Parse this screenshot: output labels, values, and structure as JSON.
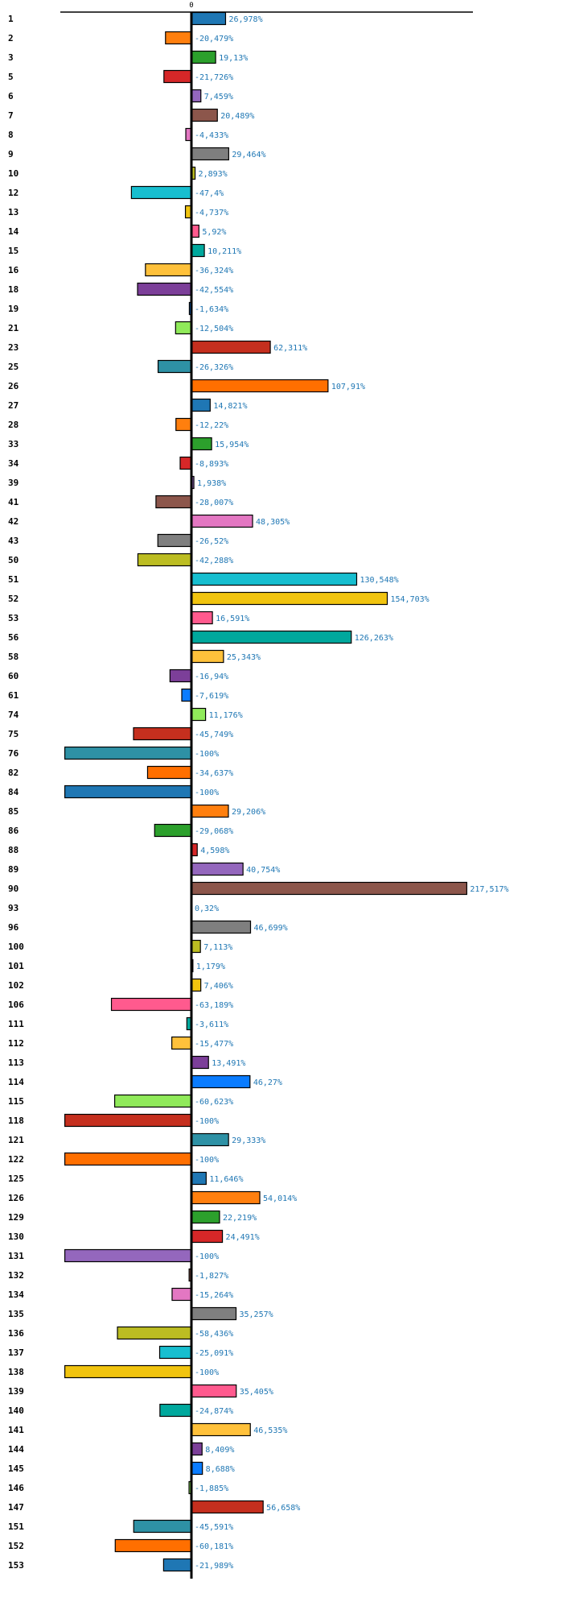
{
  "chart_data": {
    "type": "bar",
    "orientation": "horizontal",
    "title": "",
    "xlabel": "",
    "ylabel": "",
    "zero_tick_label": "0",
    "value_suffix": "%",
    "decimal_separator": ",",
    "xlim": [
      -100,
      217.517
    ],
    "grid": false,
    "legend": "none",
    "highlight_category": "42",
    "highlight_color": "#ff0000",
    "label_color": "#1f77b4",
    "palette": [
      "#1f77b4",
      "#ff7f0e",
      "#2ca02c",
      "#d62728",
      "#9467bd",
      "#8c564b",
      "#e377c2",
      "#7f7f7f",
      "#bcbd22",
      "#17becf",
      "#f1c40f",
      "#ff5a8e",
      "#00a89d",
      "#ffc13b",
      "#7c3f99",
      "#0a7cff",
      "#90ea5a",
      "#c52f1e",
      "#2e91a5",
      "#ff6f00"
    ],
    "categories": [
      "1",
      "2",
      "3",
      "5",
      "6",
      "7",
      "8",
      "9",
      "10",
      "12",
      "13",
      "14",
      "15",
      "16",
      "18",
      "19",
      "21",
      "23",
      "25",
      "26",
      "27",
      "28",
      "33",
      "34",
      "39",
      "41",
      "42",
      "43",
      "50",
      "51",
      "52",
      "53",
      "56",
      "58",
      "60",
      "61",
      "74",
      "75",
      "76",
      "82",
      "84",
      "85",
      "86",
      "88",
      "89",
      "90",
      "93",
      "96",
      "100",
      "101",
      "102",
      "106",
      "111",
      "112",
      "113",
      "114",
      "115",
      "118",
      "121",
      "122",
      "125",
      "126",
      "129",
      "130",
      "131",
      "132",
      "134",
      "135",
      "136",
      "137",
      "138",
      "139",
      "140",
      "141",
      "144",
      "145",
      "146",
      "147",
      "151",
      "152",
      "153"
    ],
    "values": [
      26.978,
      -20.479,
      19.13,
      -21.726,
      7.459,
      20.489,
      -4.433,
      29.464,
      2.893,
      -47.4,
      -4.737,
      5.92,
      10.211,
      -36.324,
      -42.554,
      -1.634,
      -12.504,
      62.311,
      -26.326,
      107.91,
      14.821,
      -12.22,
      15.954,
      -8.893,
      1.938,
      -28.007,
      48.305,
      -26.52,
      -42.288,
      130.548,
      154.703,
      16.591,
      126.263,
      25.343,
      -16.94,
      -7.619,
      11.176,
      -45.749,
      -100,
      -34.637,
      -100,
      29.206,
      -29.068,
      4.598,
      40.754,
      217.517,
      0.32,
      46.699,
      7.113,
      1.179,
      7.406,
      -63.189,
      -3.611,
      -15.477,
      13.491,
      46.27,
      -60.623,
      -100,
      29.333,
      -100,
      11.646,
      54.014,
      22.219,
      24.491,
      -100,
      -1.827,
      -15.264,
      35.257,
      -58.436,
      -25.091,
      -100,
      35.405,
      -24.874,
      46.535,
      8.409,
      8.688,
      -1.885,
      56.658,
      -45.591,
      -60.181,
      -21.989
    ],
    "value_labels": [
      "26,978%",
      "-20,479%",
      "19,13%",
      "-21,726%",
      "7,459%",
      "20,489%",
      "-4,433%",
      "29,464%",
      "2,893%",
      "-47,4%",
      "-4,737%",
      "5,92%",
      "10,211%",
      "-36,324%",
      "-42,554%",
      "-1,634%",
      "-12,504%",
      "62,311%",
      "-26,326%",
      "107,91%",
      "14,821%",
      "-12,22%",
      "15,954%",
      "-8,893%",
      "1,938%",
      "-28,007%",
      "48,305%",
      "-26,52%",
      "-42,288%",
      "130,548%",
      "154,703%",
      "16,591%",
      "126,263%",
      "25,343%",
      "-16,94%",
      "-7,619%",
      "11,176%",
      "-45,749%",
      "-100%",
      "-34,637%",
      "-100%",
      "29,206%",
      "-29,068%",
      "4,598%",
      "40,754%",
      "217,517%",
      "0,32%",
      "46,699%",
      "7,113%",
      "1,179%",
      "7,406%",
      "-63,189%",
      "-3,611%",
      "-15,477%",
      "13,491%",
      "46,27%",
      "-60,623%",
      "-100%",
      "29,333%",
      "-100%",
      "11,646%",
      "54,014%",
      "22,219%",
      "24,491%",
      "-100%",
      "-1,827%",
      "-15,264%",
      "35,257%",
      "-58,436%",
      "-25,091%",
      "-100%",
      "35,405%",
      "-24,874%",
      "46,535%",
      "8,409%",
      "8,688%",
      "-1,885%",
      "56,658%",
      "-45,591%",
      "-60,181%",
      "-21,989%"
    ]
  }
}
